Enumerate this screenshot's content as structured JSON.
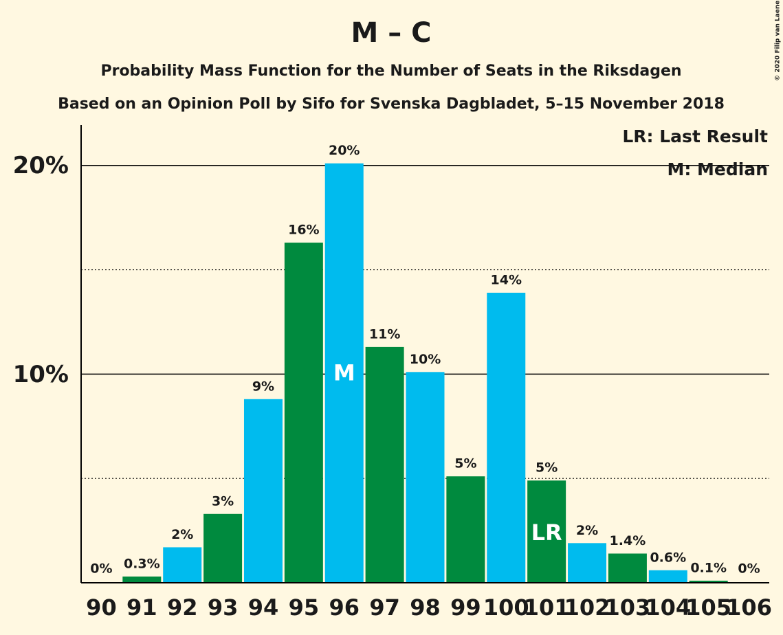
{
  "chart_data": {
    "type": "bar",
    "title": "M – C",
    "subtitle": "Probability Mass Function for the Number of Seats in the Riksdagen",
    "subtitle2": "Based on an Opinion Poll by Sifo for Svenska Dagbladet, 5–15 November 2018",
    "copyright": "© 2020 Filip van Laenen",
    "categories": [
      "90",
      "91",
      "92",
      "93",
      "94",
      "95",
      "96",
      "97",
      "98",
      "99",
      "100",
      "101",
      "102",
      "103",
      "104",
      "105",
      "106"
    ],
    "values": [
      0,
      0.3,
      1.7,
      3.3,
      8.8,
      16.3,
      20.1,
      11.3,
      10.1,
      5.1,
      13.9,
      4.9,
      1.9,
      1.4,
      0.6,
      0.1,
      0
    ],
    "value_labels": [
      "0%",
      "0.3%",
      "2%",
      "3%",
      "9%",
      "16%",
      "20%",
      "11%",
      "10%",
      "5%",
      "14%",
      "5%",
      "2%",
      "1.4%",
      "0.6%",
      "0.1%",
      "0%"
    ],
    "colors": [
      "#008a3e",
      "#008a3e",
      "#00bbee",
      "#008a3e",
      "#00bbee",
      "#008a3e",
      "#00bbee",
      "#008a3e",
      "#00bbee",
      "#008a3e",
      "#00bbee",
      "#008a3e",
      "#00bbee",
      "#008a3e",
      "#00bbee",
      "#008a3e",
      "#00bbee"
    ],
    "ylim": [
      0,
      22
    ],
    "yticks": [
      {
        "value": 10,
        "label": "10%"
      },
      {
        "value": 20,
        "label": "20%"
      }
    ],
    "minor_grid": [
      5,
      15
    ],
    "grid": true,
    "markers": [
      {
        "category": "96",
        "label": "M"
      },
      {
        "category": "101",
        "label": "LR"
      }
    ],
    "legend": [
      "LR: Last Result",
      "M: Median"
    ],
    "legend_position": "top-right"
  }
}
